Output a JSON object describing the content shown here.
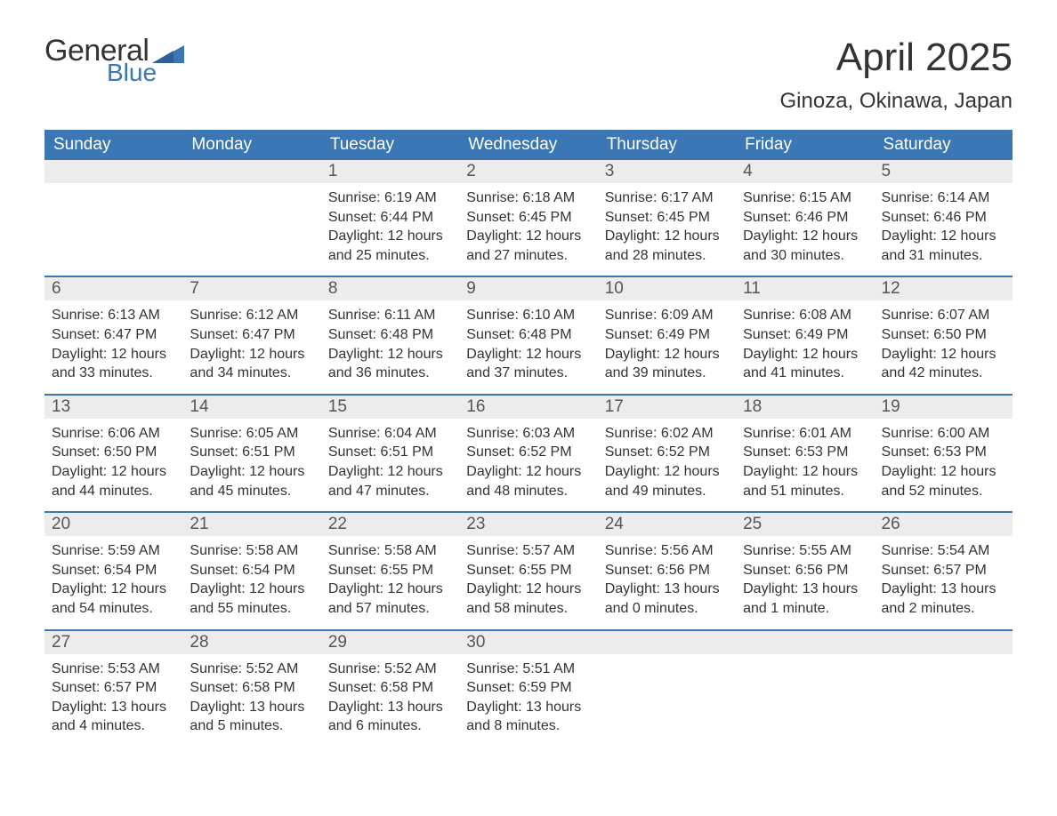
{
  "brand": {
    "general": "General",
    "blue": "Blue"
  },
  "header": {
    "month_title": "April 2025",
    "location": "Ginoza, Okinawa, Japan"
  },
  "layout": {
    "page_bg": "#ffffff",
    "header_bg": "#3b76b5",
    "header_text_color": "#ffffff",
    "date_bar_bg": "#ececec",
    "week_border_color": "#3b76b5",
    "body_text_color": "#333333",
    "title_fontsize": 44,
    "location_fontsize": 24,
    "day_header_fontsize": 19,
    "cell_fontsize": 16
  },
  "day_headers": [
    "Sunday",
    "Monday",
    "Tuesday",
    "Wednesday",
    "Thursday",
    "Friday",
    "Saturday"
  ],
  "weeks": [
    [
      {
        "date": "",
        "sunrise": "",
        "sunset": "",
        "daylight": ""
      },
      {
        "date": "",
        "sunrise": "",
        "sunset": "",
        "daylight": ""
      },
      {
        "date": "1",
        "sunrise": "Sunrise: 6:19 AM",
        "sunset": "Sunset: 6:44 PM",
        "daylight": "Daylight: 12 hours and 25 minutes."
      },
      {
        "date": "2",
        "sunrise": "Sunrise: 6:18 AM",
        "sunset": "Sunset: 6:45 PM",
        "daylight": "Daylight: 12 hours and 27 minutes."
      },
      {
        "date": "3",
        "sunrise": "Sunrise: 6:17 AM",
        "sunset": "Sunset: 6:45 PM",
        "daylight": "Daylight: 12 hours and 28 minutes."
      },
      {
        "date": "4",
        "sunrise": "Sunrise: 6:15 AM",
        "sunset": "Sunset: 6:46 PM",
        "daylight": "Daylight: 12 hours and 30 minutes."
      },
      {
        "date": "5",
        "sunrise": "Sunrise: 6:14 AM",
        "sunset": "Sunset: 6:46 PM",
        "daylight": "Daylight: 12 hours and 31 minutes."
      }
    ],
    [
      {
        "date": "6",
        "sunrise": "Sunrise: 6:13 AM",
        "sunset": "Sunset: 6:47 PM",
        "daylight": "Daylight: 12 hours and 33 minutes."
      },
      {
        "date": "7",
        "sunrise": "Sunrise: 6:12 AM",
        "sunset": "Sunset: 6:47 PM",
        "daylight": "Daylight: 12 hours and 34 minutes."
      },
      {
        "date": "8",
        "sunrise": "Sunrise: 6:11 AM",
        "sunset": "Sunset: 6:48 PM",
        "daylight": "Daylight: 12 hours and 36 minutes."
      },
      {
        "date": "9",
        "sunrise": "Sunrise: 6:10 AM",
        "sunset": "Sunset: 6:48 PM",
        "daylight": "Daylight: 12 hours and 37 minutes."
      },
      {
        "date": "10",
        "sunrise": "Sunrise: 6:09 AM",
        "sunset": "Sunset: 6:49 PM",
        "daylight": "Daylight: 12 hours and 39 minutes."
      },
      {
        "date": "11",
        "sunrise": "Sunrise: 6:08 AM",
        "sunset": "Sunset: 6:49 PM",
        "daylight": "Daylight: 12 hours and 41 minutes."
      },
      {
        "date": "12",
        "sunrise": "Sunrise: 6:07 AM",
        "sunset": "Sunset: 6:50 PM",
        "daylight": "Daylight: 12 hours and 42 minutes."
      }
    ],
    [
      {
        "date": "13",
        "sunrise": "Sunrise: 6:06 AM",
        "sunset": "Sunset: 6:50 PM",
        "daylight": "Daylight: 12 hours and 44 minutes."
      },
      {
        "date": "14",
        "sunrise": "Sunrise: 6:05 AM",
        "sunset": "Sunset: 6:51 PM",
        "daylight": "Daylight: 12 hours and 45 minutes."
      },
      {
        "date": "15",
        "sunrise": "Sunrise: 6:04 AM",
        "sunset": "Sunset: 6:51 PM",
        "daylight": "Daylight: 12 hours and 47 minutes."
      },
      {
        "date": "16",
        "sunrise": "Sunrise: 6:03 AM",
        "sunset": "Sunset: 6:52 PM",
        "daylight": "Daylight: 12 hours and 48 minutes."
      },
      {
        "date": "17",
        "sunrise": "Sunrise: 6:02 AM",
        "sunset": "Sunset: 6:52 PM",
        "daylight": "Daylight: 12 hours and 49 minutes."
      },
      {
        "date": "18",
        "sunrise": "Sunrise: 6:01 AM",
        "sunset": "Sunset: 6:53 PM",
        "daylight": "Daylight: 12 hours and 51 minutes."
      },
      {
        "date": "19",
        "sunrise": "Sunrise: 6:00 AM",
        "sunset": "Sunset: 6:53 PM",
        "daylight": "Daylight: 12 hours and 52 minutes."
      }
    ],
    [
      {
        "date": "20",
        "sunrise": "Sunrise: 5:59 AM",
        "sunset": "Sunset: 6:54 PM",
        "daylight": "Daylight: 12 hours and 54 minutes."
      },
      {
        "date": "21",
        "sunrise": "Sunrise: 5:58 AM",
        "sunset": "Sunset: 6:54 PM",
        "daylight": "Daylight: 12 hours and 55 minutes."
      },
      {
        "date": "22",
        "sunrise": "Sunrise: 5:58 AM",
        "sunset": "Sunset: 6:55 PM",
        "daylight": "Daylight: 12 hours and 57 minutes."
      },
      {
        "date": "23",
        "sunrise": "Sunrise: 5:57 AM",
        "sunset": "Sunset: 6:55 PM",
        "daylight": "Daylight: 12 hours and 58 minutes."
      },
      {
        "date": "24",
        "sunrise": "Sunrise: 5:56 AM",
        "sunset": "Sunset: 6:56 PM",
        "daylight": "Daylight: 13 hours and 0 minutes."
      },
      {
        "date": "25",
        "sunrise": "Sunrise: 5:55 AM",
        "sunset": "Sunset: 6:56 PM",
        "daylight": "Daylight: 13 hours and 1 minute."
      },
      {
        "date": "26",
        "sunrise": "Sunrise: 5:54 AM",
        "sunset": "Sunset: 6:57 PM",
        "daylight": "Daylight: 13 hours and 2 minutes."
      }
    ],
    [
      {
        "date": "27",
        "sunrise": "Sunrise: 5:53 AM",
        "sunset": "Sunset: 6:57 PM",
        "daylight": "Daylight: 13 hours and 4 minutes."
      },
      {
        "date": "28",
        "sunrise": "Sunrise: 5:52 AM",
        "sunset": "Sunset: 6:58 PM",
        "daylight": "Daylight: 13 hours and 5 minutes."
      },
      {
        "date": "29",
        "sunrise": "Sunrise: 5:52 AM",
        "sunset": "Sunset: 6:58 PM",
        "daylight": "Daylight: 13 hours and 6 minutes."
      },
      {
        "date": "30",
        "sunrise": "Sunrise: 5:51 AM",
        "sunset": "Sunset: 6:59 PM",
        "daylight": "Daylight: 13 hours and 8 minutes."
      },
      {
        "date": "",
        "sunrise": "",
        "sunset": "",
        "daylight": ""
      },
      {
        "date": "",
        "sunrise": "",
        "sunset": "",
        "daylight": ""
      },
      {
        "date": "",
        "sunrise": "",
        "sunset": "",
        "daylight": ""
      }
    ]
  ]
}
